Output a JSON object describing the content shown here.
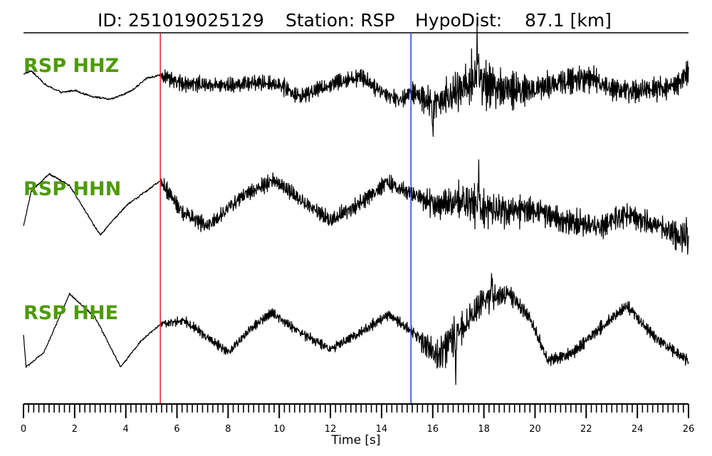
{
  "header": {
    "id_text": "ID: 251019025129",
    "station_text": "Station: RSP",
    "hypodist_text": "HypoDist:    87.1 [km]"
  },
  "colors": {
    "trace": "#000000",
    "label": "#4e9a06",
    "p_pick": "#e8202a",
    "s_pick": "#1f3fe0"
  },
  "chart_data": {
    "type": "line",
    "title": "ID: 251019025129   Station: RSP   HypoDist:    87.1 [km]",
    "xlabel": "Time [s]",
    "ylabel": "",
    "xlim": [
      0,
      26
    ],
    "x_ticks": [
      0,
      2,
      4,
      6,
      8,
      10,
      12,
      14,
      16,
      18,
      20,
      22,
      24,
      26
    ],
    "x_tick_labels": [
      "0",
      "2",
      "4",
      "6",
      "8",
      "10",
      "12",
      "14",
      "16",
      "18",
      "20",
      "22",
      "24",
      "26"
    ],
    "minor_tick_step": 0.2,
    "grid": false,
    "picks": [
      {
        "time": 5.35,
        "color": "#e8202a"
      },
      {
        "time": 15.15,
        "color": "#1f3fe0"
      }
    ],
    "series": [
      {
        "name": "RSP HHZ",
        "low_freq": [
          [
            0,
            0.2
          ],
          [
            0.3,
            0.25
          ],
          [
            0.9,
            0.0
          ],
          [
            1.5,
            -0.12
          ],
          [
            2.0,
            -0.08
          ],
          [
            2.6,
            -0.18
          ],
          [
            3.4,
            -0.24
          ],
          [
            4.2,
            -0.1
          ],
          [
            4.8,
            0.12
          ],
          [
            5.35,
            0.18
          ],
          [
            6.0,
            0.05
          ],
          [
            7.0,
            0.02
          ],
          [
            8.0,
            0.0
          ],
          [
            9.0,
            0.05
          ],
          [
            10.0,
            0.02
          ],
          [
            10.8,
            -0.2
          ],
          [
            11.6,
            -0.05
          ],
          [
            12.4,
            0.08
          ],
          [
            13.2,
            0.15
          ],
          [
            14.0,
            -0.1
          ],
          [
            14.7,
            -0.25
          ],
          [
            15.2,
            -0.12
          ],
          [
            16.0,
            -0.3
          ],
          [
            17.0,
            -0.1
          ],
          [
            17.7,
            0.15
          ],
          [
            18.5,
            -0.05
          ],
          [
            19.5,
            -0.1
          ],
          [
            20.5,
            0.0
          ],
          [
            21.5,
            0.1
          ],
          [
            22.2,
            0.12
          ],
          [
            23.0,
            -0.05
          ],
          [
            24.0,
            -0.1
          ],
          [
            25.0,
            -0.05
          ],
          [
            25.5,
            0.0
          ],
          [
            26,
            0.25
          ]
        ],
        "noise": [
          [
            0,
            0
          ],
          [
            5.3,
            0
          ],
          [
            5.5,
            0.2
          ],
          [
            15.1,
            0.22
          ],
          [
            15.5,
            0.35
          ],
          [
            16.5,
            0.45
          ],
          [
            17.3,
            0.65
          ],
          [
            17.8,
            0.75
          ],
          [
            18.5,
            0.55
          ],
          [
            20.0,
            0.35
          ],
          [
            26,
            0.28
          ]
        ],
        "spikes": [
          [
            17.75,
            1.0
          ],
          [
            16.0,
            -0.85
          ]
        ]
      },
      {
        "name": "RSP HHN",
        "low_freq": [
          [
            0,
            -0.4
          ],
          [
            0.3,
            0.2
          ],
          [
            1.0,
            0.5
          ],
          [
            1.8,
            0.3
          ],
          [
            3.0,
            -0.55
          ],
          [
            4.0,
            -0.05
          ],
          [
            5.35,
            0.38
          ],
          [
            6.2,
            -0.15
          ],
          [
            7.2,
            -0.4
          ],
          [
            8.5,
            0.1
          ],
          [
            9.8,
            0.4
          ],
          [
            11.0,
            0.0
          ],
          [
            12.0,
            -0.3
          ],
          [
            13.0,
            -0.05
          ],
          [
            14.2,
            0.35
          ],
          [
            15.2,
            0.15
          ],
          [
            16.2,
            -0.05
          ],
          [
            17.0,
            0.05
          ],
          [
            18.0,
            -0.1
          ],
          [
            19.0,
            -0.15
          ],
          [
            20.0,
            -0.1
          ],
          [
            21.0,
            -0.3
          ],
          [
            22.5,
            -0.4
          ],
          [
            23.5,
            -0.2
          ],
          [
            24.5,
            -0.35
          ],
          [
            26,
            -0.6
          ]
        ],
        "noise": [
          [
            0,
            0
          ],
          [
            5.3,
            0
          ],
          [
            5.5,
            0.2
          ],
          [
            15.1,
            0.22
          ],
          [
            15.5,
            0.3
          ],
          [
            17.5,
            0.55
          ],
          [
            18.5,
            0.45
          ],
          [
            20.0,
            0.35
          ],
          [
            25.0,
            0.3
          ],
          [
            26,
            0.5
          ]
        ],
        "spikes": [
          [
            17.8,
            0.9
          ],
          [
            25.5,
            0.75
          ],
          [
            25.5,
            -0.85
          ]
        ]
      },
      {
        "name": "RSP HHE",
        "low_freq": [
          [
            0,
            0.0
          ],
          [
            0.1,
            -0.55
          ],
          [
            0.8,
            -0.3
          ],
          [
            1.8,
            0.7
          ],
          [
            2.8,
            0.3
          ],
          [
            3.8,
            -0.55
          ],
          [
            4.6,
            -0.1
          ],
          [
            5.35,
            0.18
          ],
          [
            6.3,
            0.25
          ],
          [
            7.2,
            -0.05
          ],
          [
            8.0,
            -0.3
          ],
          [
            9.0,
            0.15
          ],
          [
            9.7,
            0.38
          ],
          [
            10.8,
            0.05
          ],
          [
            12.0,
            -0.25
          ],
          [
            13.2,
            0.05
          ],
          [
            14.3,
            0.35
          ],
          [
            15.2,
            0.05
          ],
          [
            16.2,
            -0.35
          ],
          [
            17.2,
            0.15
          ],
          [
            18.0,
            0.6
          ],
          [
            19.0,
            0.7
          ],
          [
            19.8,
            0.3
          ],
          [
            20.5,
            -0.45
          ],
          [
            21.5,
            -0.3
          ],
          [
            22.5,
            0.1
          ],
          [
            23.6,
            0.5
          ],
          [
            24.7,
            -0.05
          ],
          [
            26,
            -0.45
          ]
        ],
        "noise": [
          [
            0,
            0
          ],
          [
            5.3,
            0
          ],
          [
            5.5,
            0.12
          ],
          [
            15.1,
            0.14
          ],
          [
            15.6,
            0.3
          ],
          [
            16.5,
            0.5
          ],
          [
            17.5,
            0.4
          ],
          [
            18.5,
            0.32
          ],
          [
            20.0,
            0.16
          ],
          [
            26,
            0.14
          ]
        ],
        "spikes": [
          [
            16.9,
            -1.05
          ],
          [
            18.3,
            0.75
          ]
        ]
      }
    ]
  }
}
